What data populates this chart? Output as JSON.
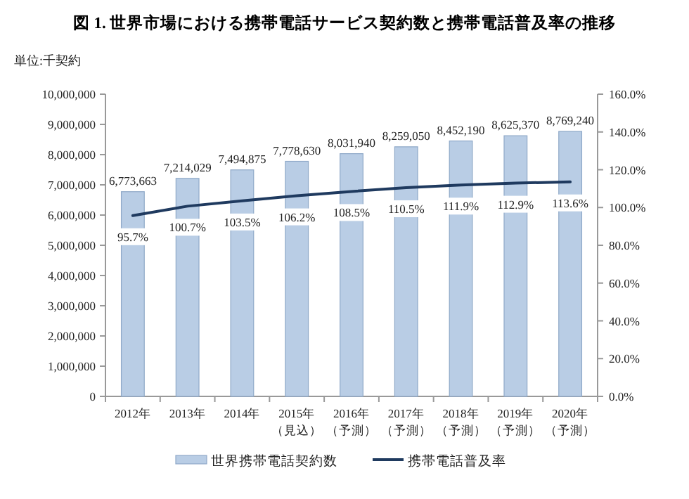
{
  "chart_data": {
    "type": "bar",
    "title": "図 1.  世界市場における携帯電話サービス契約数と携帯電話普及率の推移",
    "ylabel": "単位:千契約",
    "categories": [
      "2012年",
      "2013年",
      "2014年",
      "2015年（見込）",
      "2016年（予測）",
      "2017年（予測）",
      "2018年（予測）",
      "2019年（予測）",
      "2020年（予測）"
    ],
    "series": [
      {
        "name": "世界携帯電話契約数",
        "color": "#b9cde5",
        "values": [
          6773663,
          7214029,
          7494875,
          7778630,
          8031940,
          8259050,
          8452190,
          8625370,
          8769240
        ],
        "value_labels": [
          "6,773,663",
          "7,214,029",
          "7,494,875",
          "7,778,630",
          "8,031,940",
          "8,259,050",
          "8,452,190",
          "8,625,370",
          "8,769,240"
        ]
      },
      {
        "name": "携帯電話普及率",
        "type": "line",
        "axis": "y2",
        "color": "#1f3a5f",
        "values": [
          95.7,
          100.7,
          103.5,
          106.2,
          108.5,
          110.5,
          111.9,
          112.9,
          113.6
        ],
        "value_labels": [
          "95.7%",
          "100.7%",
          "103.5%",
          "106.2%",
          "108.5%",
          "110.5%",
          "111.9%",
          "112.9%",
          "113.6%"
        ]
      }
    ],
    "ylim": [
      0,
      10000000
    ],
    "yticks": [
      {
        "value": 0,
        "label": "0"
      },
      {
        "value": 1000000,
        "label": "1,000,000"
      },
      {
        "value": 2000000,
        "label": "2,000,000"
      },
      {
        "value": 3000000,
        "label": "3,000,000"
      },
      {
        "value": 4000000,
        "label": "4,000,000"
      },
      {
        "value": 5000000,
        "label": "5,000,000"
      },
      {
        "value": 6000000,
        "label": "6,000,000"
      },
      {
        "value": 7000000,
        "label": "7,000,000"
      },
      {
        "value": 8000000,
        "label": "8,000,000"
      },
      {
        "value": 9000000,
        "label": "9,000,000"
      },
      {
        "value": 10000000,
        "label": "10,000,000"
      }
    ],
    "y2lim": [
      0,
      160
    ],
    "y2ticks": [
      {
        "value": 0,
        "label": "0.0%"
      },
      {
        "value": 20,
        "label": "20.0%"
      },
      {
        "value": 40,
        "label": "40.0%"
      },
      {
        "value": 60,
        "label": "60.0%"
      },
      {
        "value": 80,
        "label": "80.0%"
      },
      {
        "value": 100,
        "label": "100.0%"
      },
      {
        "value": 120,
        "label": "120.0%"
      },
      {
        "value": 140,
        "label": "140.0%"
      },
      {
        "value": 160,
        "label": "160.0%"
      }
    ],
    "legend": "bottom"
  }
}
